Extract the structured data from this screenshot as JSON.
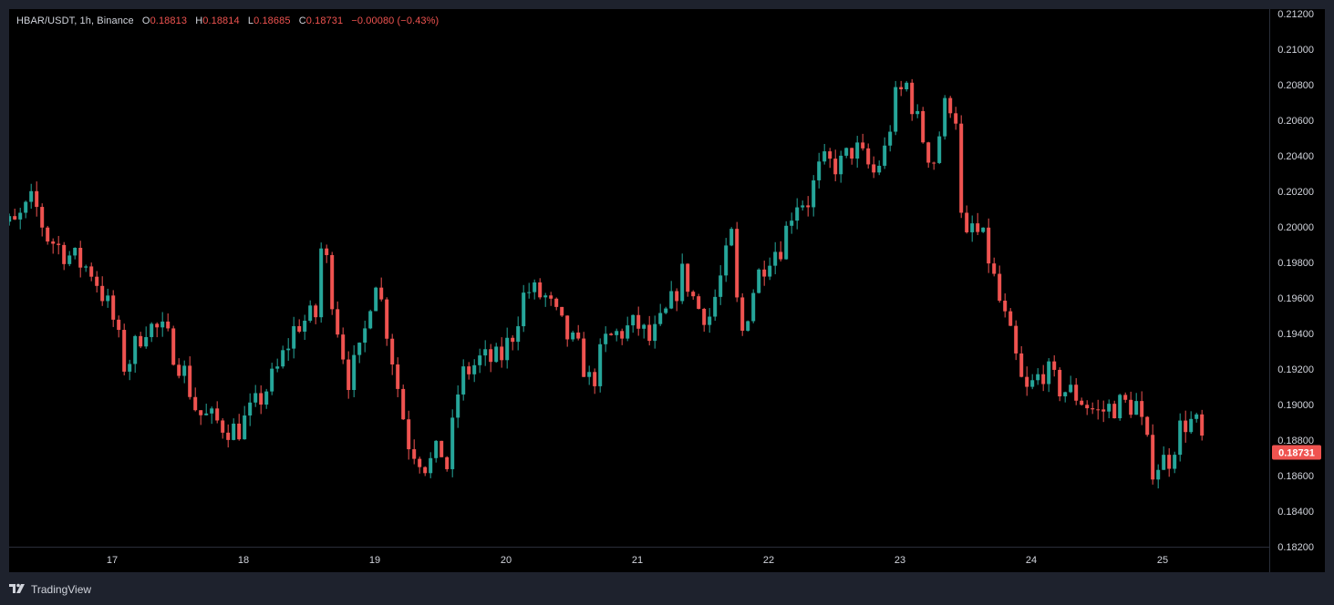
{
  "legend": {
    "symbol": "HBAR/USDT, 1h, Binance",
    "open_label": "O",
    "open": "0.18813",
    "high_label": "H",
    "high": "0.18814",
    "low_label": "L",
    "low": "0.18685",
    "close_label": "C",
    "close": "0.18731",
    "change": "−0.00080 (−0.43%)"
  },
  "current_price": "0.18731",
  "footer": {
    "brand": "TradingView",
    "logo_icon": "tradingview-logo-icon"
  },
  "colors": {
    "up": "#26a69a",
    "down": "#ef5350",
    "background": "#000000",
    "frame": "#1e222d"
  },
  "chart_data": {
    "type": "candlestick",
    "interval": "1h",
    "x_ticks": [
      {
        "label": "17",
        "day": 17
      },
      {
        "label": "18",
        "day": 18
      },
      {
        "label": "19",
        "day": 19
      },
      {
        "label": "20",
        "day": 20
      },
      {
        "label": "21",
        "day": 21
      },
      {
        "label": "22",
        "day": 22
      },
      {
        "label": "23",
        "day": 23
      },
      {
        "label": "24",
        "day": 24
      },
      {
        "label": "25",
        "day": 25
      }
    ],
    "x_start_day": 16.05,
    "x_end_day": 25.33,
    "y_ticks": [
      "0.21200",
      "0.21000",
      "0.20800",
      "0.20600",
      "0.20400",
      "0.20200",
      "0.20000",
      "0.19800",
      "0.19600",
      "0.19400",
      "0.19200",
      "0.19000",
      "0.18800",
      "0.18600",
      "0.18400",
      "0.18200"
    ],
    "ylim": [
      0.182,
      0.212
    ],
    "close_anchors": [
      [
        16.05,
        0.199
      ],
      [
        16.15,
        0.2003
      ],
      [
        16.25,
        0.2
      ],
      [
        16.4,
        0.2015
      ],
      [
        16.5,
        0.1995
      ],
      [
        16.65,
        0.1985
      ],
      [
        16.85,
        0.1975
      ],
      [
        17.0,
        0.195
      ],
      [
        17.1,
        0.192
      ],
      [
        17.25,
        0.1945
      ],
      [
        17.4,
        0.194
      ],
      [
        17.55,
        0.1918
      ],
      [
        17.65,
        0.1895
      ],
      [
        17.8,
        0.189
      ],
      [
        17.95,
        0.1885
      ],
      [
        18.1,
        0.19
      ],
      [
        18.25,
        0.1918
      ],
      [
        18.4,
        0.1945
      ],
      [
        18.55,
        0.195
      ],
      [
        18.6,
        0.1995
      ],
      [
        18.7,
        0.195
      ],
      [
        18.8,
        0.1915
      ],
      [
        18.9,
        0.193
      ],
      [
        19.0,
        0.1975
      ],
      [
        19.1,
        0.194
      ],
      [
        19.25,
        0.188
      ],
      [
        19.4,
        0.1865
      ],
      [
        19.5,
        0.1875
      ],
      [
        19.55,
        0.1865
      ],
      [
        19.65,
        0.1915
      ],
      [
        19.8,
        0.1925
      ],
      [
        19.95,
        0.1925
      ],
      [
        20.05,
        0.194
      ],
      [
        20.15,
        0.1965
      ],
      [
        20.3,
        0.196
      ],
      [
        20.45,
        0.194
      ],
      [
        20.55,
        0.193
      ],
      [
        20.65,
        0.191
      ],
      [
        20.75,
        0.1935
      ],
      [
        20.85,
        0.194
      ],
      [
        21.0,
        0.1945
      ],
      [
        21.1,
        0.1935
      ],
      [
        21.25,
        0.1955
      ],
      [
        21.35,
        0.1975
      ],
      [
        21.45,
        0.1955
      ],
      [
        21.55,
        0.195
      ],
      [
        21.65,
        0.1975
      ],
      [
        21.72,
        0.1995
      ],
      [
        21.78,
        0.1935
      ],
      [
        21.9,
        0.197
      ],
      [
        22.0,
        0.1985
      ],
      [
        22.1,
        0.199
      ],
      [
        22.2,
        0.2015
      ],
      [
        22.3,
        0.2015
      ],
      [
        22.4,
        0.2035
      ],
      [
        22.55,
        0.2035
      ],
      [
        22.65,
        0.2045
      ],
      [
        22.8,
        0.203
      ],
      [
        22.9,
        0.2045
      ],
      [
        22.95,
        0.207
      ],
      [
        23.05,
        0.208
      ],
      [
        23.15,
        0.2055
      ],
      [
        23.25,
        0.2035
      ],
      [
        23.35,
        0.207
      ],
      [
        23.42,
        0.207
      ],
      [
        23.48,
        0.1985
      ],
      [
        23.55,
        0.2
      ],
      [
        23.65,
        0.199
      ],
      [
        23.75,
        0.196
      ],
      [
        23.85,
        0.1935
      ],
      [
        23.95,
        0.1905
      ],
      [
        24.1,
        0.192
      ],
      [
        24.2,
        0.191
      ],
      [
        24.35,
        0.1905
      ],
      [
        24.5,
        0.1895
      ],
      [
        24.65,
        0.19
      ],
      [
        24.8,
        0.19
      ],
      [
        24.92,
        0.1865
      ],
      [
        25.05,
        0.187
      ],
      [
        25.15,
        0.189
      ],
      [
        25.25,
        0.189
      ],
      [
        25.33,
        0.1873
      ]
    ]
  }
}
